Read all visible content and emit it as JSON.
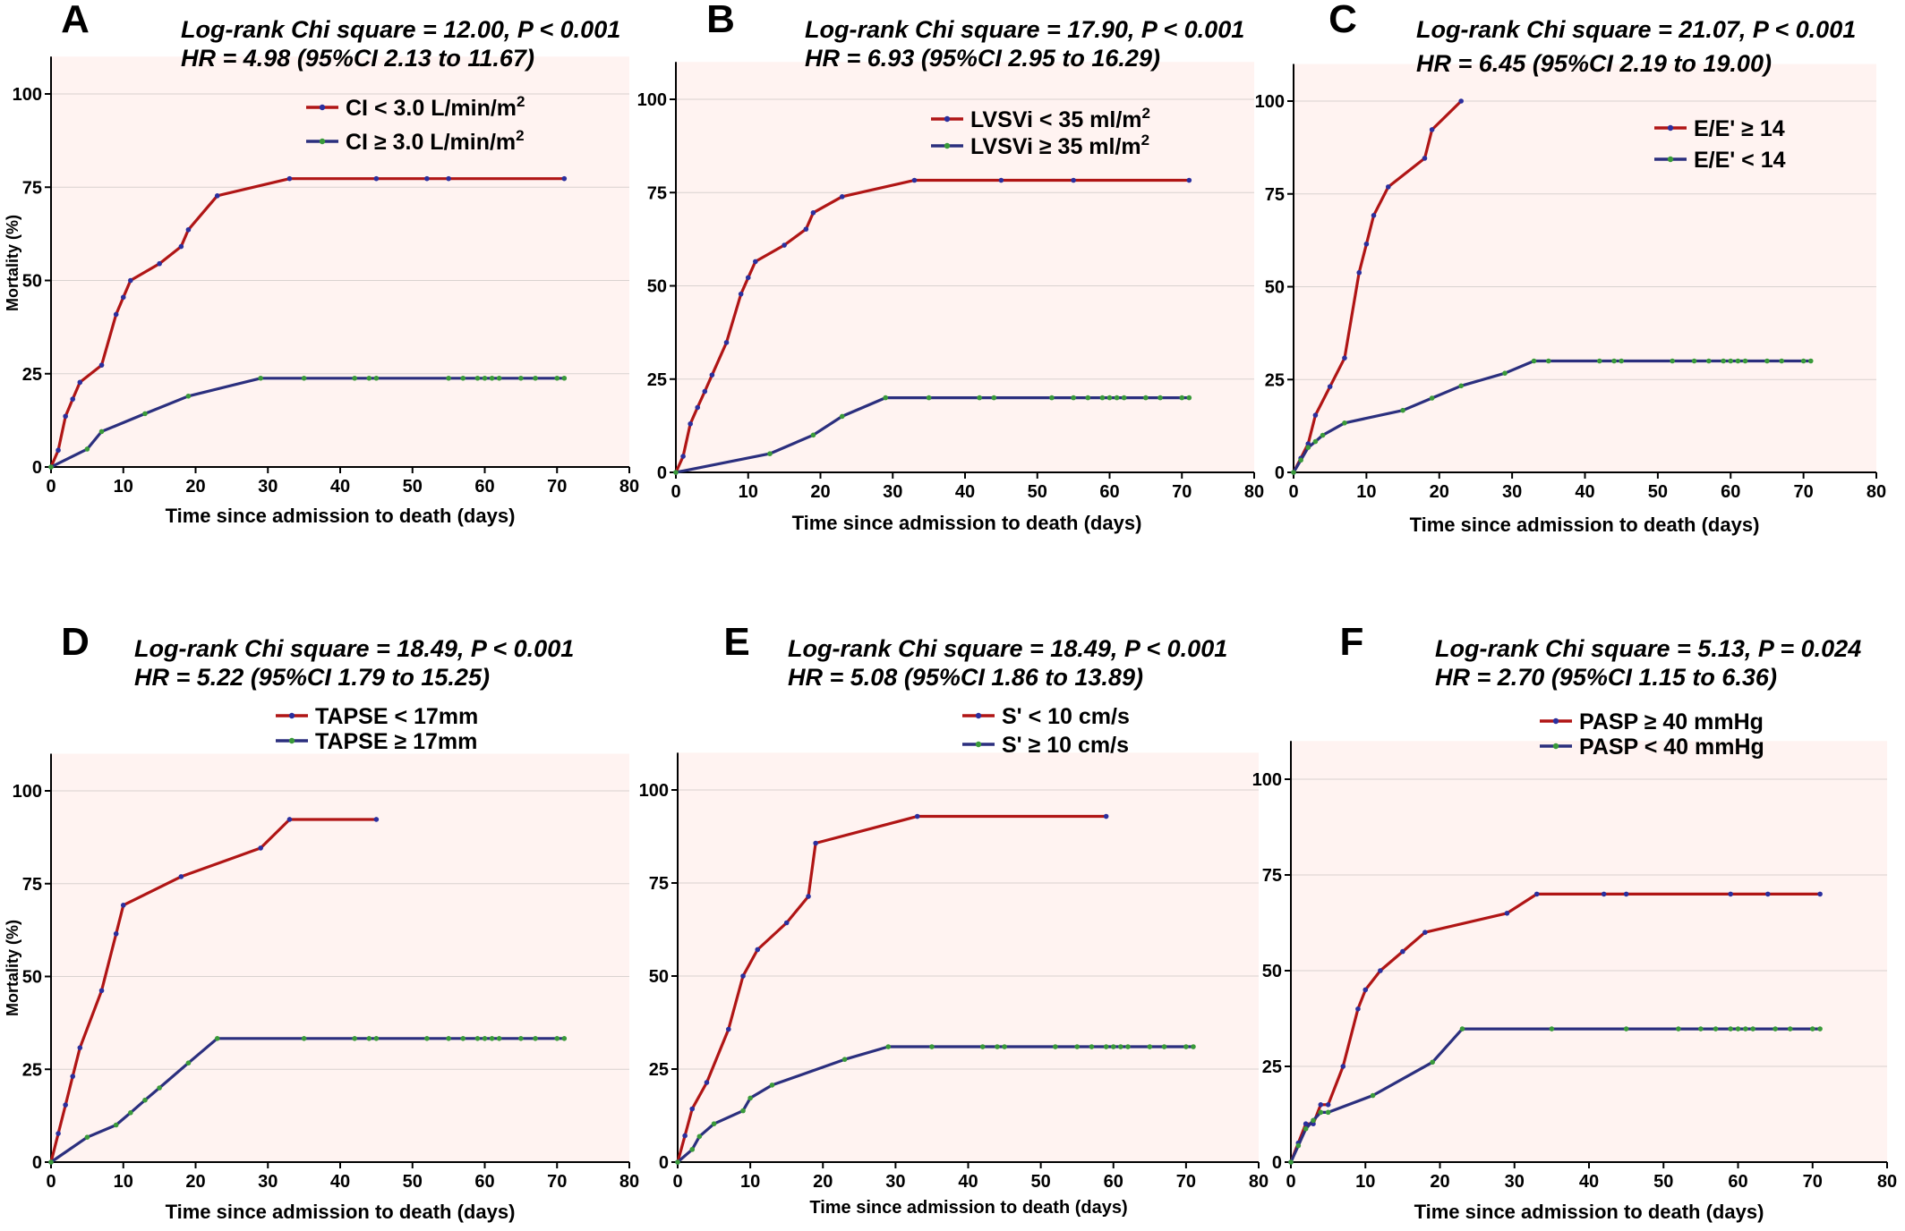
{
  "chart_data": [
    {
      "type": "line",
      "panel": "A",
      "title_lines": [
        "Log-rank Chi square  = 12.00, P < 0.001",
        "HR = 4.98 (95%CI  2.13 to 11.67)"
      ],
      "xlabel": "Time since admission to death (days)",
      "ylabel": "Mortality (%)",
      "xlim": [
        0,
        80
      ],
      "ylim": [
        0,
        110
      ],
      "xticks": [
        0,
        10,
        20,
        30,
        40,
        50,
        60,
        70,
        80
      ],
      "yticks": [
        0,
        25,
        50,
        75,
        100
      ],
      "grid": true,
      "legend_position": "top-right",
      "series": [
        {
          "name": "CI < 3.0 L/min/m",
          "name_sup": "2",
          "color": "#b01515",
          "marker": "#2b2f9e",
          "x": [
            0,
            1,
            2,
            3,
            4,
            7,
            9,
            10,
            11,
            15,
            18,
            19,
            23,
            33,
            45,
            52,
            55,
            71
          ],
          "y": [
            0,
            4.5,
            13.6,
            18.2,
            22.7,
            27.3,
            40.9,
            45.5,
            50.0,
            54.5,
            59.1,
            63.6,
            72.7,
            77.3,
            77.3,
            77.3,
            77.3,
            77.3
          ]
        },
        {
          "name": "CI ≥ 3.0 L/min/m",
          "name_sup": "2",
          "color": "#2b2f7e",
          "marker": "#3a9a3a",
          "x": [
            0,
            5,
            7,
            13,
            19,
            29,
            35,
            42,
            44,
            45,
            55,
            57,
            59,
            60,
            61,
            62,
            65,
            67,
            70,
            71
          ],
          "y": [
            0,
            4.8,
            9.5,
            14.3,
            19.0,
            23.8,
            23.8,
            23.8,
            23.8,
            23.8,
            23.8,
            23.8,
            23.8,
            23.8,
            23.8,
            23.8,
            23.8,
            23.8,
            23.8,
            23.8
          ]
        }
      ]
    },
    {
      "type": "line",
      "panel": "B",
      "title_lines": [
        "Log-rank Chi square  = 17.90, P < 0.001",
        "HR = 6.93 (95%CI  2.95 to 16.29)"
      ],
      "xlabel": "Time since admission to death (days)",
      "ylabel": "",
      "xlim": [
        0,
        80
      ],
      "ylim": [
        0,
        110
      ],
      "xticks": [
        0,
        10,
        20,
        30,
        40,
        50,
        60,
        70,
        80
      ],
      "yticks": [
        0,
        25,
        50,
        75,
        100
      ],
      "grid": true,
      "legend_position": "top-right",
      "series": [
        {
          "name": "LVSVi < 35 ml/m",
          "name_sup": "2",
          "color": "#b01515",
          "marker": "#2b2f9e",
          "x": [
            0,
            1,
            2,
            3,
            4,
            5,
            7,
            9,
            10,
            11,
            15,
            18,
            19,
            23,
            33,
            45,
            55,
            71
          ],
          "y": [
            0,
            4.3,
            13.0,
            17.4,
            21.7,
            26.1,
            34.8,
            47.8,
            52.2,
            56.5,
            60.9,
            65.2,
            69.6,
            73.9,
            78.3,
            78.3,
            78.3,
            78.3
          ]
        },
        {
          "name": "LVSVi ≥ 35 ml/m",
          "name_sup": "2",
          "color": "#2b2f7e",
          "marker": "#3a9a3a",
          "x": [
            0,
            13,
            19,
            23,
            29,
            35,
            42,
            44,
            52,
            55,
            57,
            59,
            60,
            61,
            62,
            65,
            67,
            70,
            71
          ],
          "y": [
            0,
            5,
            10,
            15,
            20,
            20,
            20,
            20,
            20,
            20,
            20,
            20,
            20,
            20,
            20,
            20,
            20,
            20,
            20
          ]
        }
      ]
    },
    {
      "type": "line",
      "panel": "C",
      "title_lines": [
        "Log-rank Chi square  = 21.07, P < 0.001",
        "HR = 6.45 (95%CI  2.19 to 19.00)"
      ],
      "xlabel": "Time since admission to death (days)",
      "ylabel": "",
      "xlim": [
        0,
        80
      ],
      "ylim": [
        0,
        110
      ],
      "xticks": [
        0,
        10,
        20,
        30,
        40,
        50,
        60,
        70,
        80
      ],
      "yticks": [
        0,
        25,
        50,
        75,
        100
      ],
      "grid": true,
      "legend_position": "top-right",
      "series": [
        {
          "name": "E/E' ≥ 14",
          "name_sup": "",
          "color": "#b01515",
          "marker": "#2b2f9e",
          "x": [
            0,
            1,
            2,
            3,
            5,
            7,
            9,
            10,
            11,
            13,
            18,
            19,
            23
          ],
          "y": [
            0,
            3.8,
            7.7,
            15.4,
            23.1,
            30.8,
            53.8,
            61.5,
            69.2,
            76.9,
            84.6,
            92.3,
            100
          ]
        },
        {
          "name": "E/E' < 14",
          "name_sup": "",
          "color": "#2b2f7e",
          "marker": "#3a9a3a",
          "x": [
            0,
            1,
            2,
            3,
            4,
            7,
            15,
            19,
            23,
            29,
            33,
            35,
            42,
            44,
            45,
            52,
            55,
            57,
            59,
            60,
            61,
            62,
            65,
            67,
            70,
            71
          ],
          "y": [
            0,
            3.3,
            6.7,
            8.3,
            10.0,
            13.3,
            16.7,
            20.0,
            23.3,
            26.7,
            30,
            30,
            30,
            30,
            30,
            30,
            30,
            30,
            30,
            30,
            30,
            30,
            30,
            30,
            30,
            30
          ]
        }
      ]
    },
    {
      "type": "line",
      "panel": "D",
      "title_lines": [
        "Log-rank Chi square  = 18.49, P < 0.001",
        "HR = 5.22 (95%CI  1.79 to 15.25)"
      ],
      "xlabel": "Time since admission to death (days)",
      "ylabel": "Mortality (%)",
      "xlim": [
        0,
        80
      ],
      "ylim": [
        0,
        110
      ],
      "xticks": [
        0,
        10,
        20,
        30,
        40,
        50,
        60,
        70,
        80
      ],
      "yticks": [
        0,
        25,
        50,
        75,
        100
      ],
      "grid": true,
      "legend_position": "top-center",
      "series": [
        {
          "name": "TAPSE < 17mm",
          "name_sup": "",
          "color": "#b01515",
          "marker": "#2b2f9e",
          "x": [
            0,
            1,
            2,
            3,
            4,
            7,
            9,
            10,
            18,
            29,
            33,
            45
          ],
          "y": [
            0,
            7.7,
            15.4,
            23.1,
            30.8,
            46.2,
            61.5,
            69.2,
            76.9,
            84.6,
            92.3,
            92.3
          ]
        },
        {
          "name": "TAPSE ≥ 17mm",
          "name_sup": "",
          "color": "#2b2f7e",
          "marker": "#3a9a3a",
          "x": [
            0,
            5,
            9,
            11,
            13,
            15,
            19,
            23,
            35,
            42,
            44,
            45,
            52,
            55,
            57,
            59,
            60,
            61,
            62,
            65,
            67,
            70,
            71
          ],
          "y": [
            0,
            6.7,
            10.0,
            13.3,
            16.7,
            20.0,
            26.7,
            33.3,
            33.3,
            33.3,
            33.3,
            33.3,
            33.3,
            33.3,
            33.3,
            33.3,
            33.3,
            33.3,
            33.3,
            33.3,
            33.3,
            33.3,
            33.3
          ]
        }
      ]
    },
    {
      "type": "line",
      "panel": "E",
      "title_lines": [
        "Log-rank Chi square  = 18.49, P < 0.001",
        "HR = 5.08 (95%CI  1.86 to 13.89)"
      ],
      "xlabel": "Time since admission to death (days)",
      "ylabel": "",
      "xlim": [
        0,
        80
      ],
      "ylim": [
        0,
        110
      ],
      "xticks": [
        0,
        10,
        20,
        30,
        40,
        50,
        60,
        70,
        80
      ],
      "yticks": [
        0,
        25,
        50,
        75,
        100
      ],
      "grid": true,
      "legend_position": "top-center",
      "series": [
        {
          "name": "S' < 10 cm/s",
          "name_sup": "",
          "color": "#b01515",
          "marker": "#2b2f9e",
          "x": [
            0,
            1,
            2,
            4,
            7,
            9,
            11,
            15,
            18,
            19,
            33,
            59
          ],
          "y": [
            0,
            7.1,
            14.3,
            21.4,
            35.7,
            50.0,
            57.1,
            64.3,
            71.4,
            85.7,
            92.9,
            92.9
          ]
        },
        {
          "name": "S' ≥ 10 cm/s",
          "name_sup": "",
          "color": "#2b2f7e",
          "marker": "#3a9a3a",
          "x": [
            0,
            2,
            3,
            5,
            9,
            10,
            13,
            23,
            29,
            35,
            42,
            44,
            45,
            52,
            55,
            57,
            59,
            60,
            61,
            62,
            65,
            67,
            70,
            71
          ],
          "y": [
            0,
            3.4,
            6.9,
            10.3,
            13.8,
            17.2,
            20.7,
            27.6,
            31.0,
            31.0,
            31.0,
            31.0,
            31.0,
            31.0,
            31.0,
            31.0,
            31.0,
            31.0,
            31.0,
            31.0,
            31.0,
            31.0,
            31.0,
            31.0
          ]
        }
      ]
    },
    {
      "type": "line",
      "panel": "F",
      "title_lines": [
        "Log-rank Chi square  = 5.13, P = 0.024",
        "HR = 2.70 (95%CI  1.15 to 6.36)"
      ],
      "xlabel": "Time since admission to death (days)",
      "ylabel": "",
      "xlim": [
        0,
        80
      ],
      "ylim": [
        0,
        110
      ],
      "xticks": [
        0,
        10,
        20,
        30,
        40,
        50,
        60,
        70,
        80
      ],
      "yticks": [
        0,
        25,
        50,
        75,
        100
      ],
      "grid": true,
      "legend_position": "top-center",
      "series": [
        {
          "name": "PASP ≥ 40 mmHg",
          "name_sup": "",
          "color": "#b01515",
          "marker": "#2b2f9e",
          "x": [
            0,
            1,
            2,
            3,
            4,
            5,
            7,
            9,
            10,
            12,
            15,
            18,
            29,
            33,
            42,
            45,
            59,
            64,
            71
          ],
          "y": [
            0,
            5,
            10,
            10,
            15,
            15,
            25,
            40,
            45,
            50,
            55,
            60,
            65,
            70,
            70,
            70,
            70,
            70,
            70
          ]
        },
        {
          "name": "PASP < 40 mmHg",
          "name_sup": "",
          "color": "#2b2f7e",
          "marker": "#3a9a3a",
          "x": [
            0,
            1,
            2,
            3,
            4,
            5,
            11,
            19,
            23,
            35,
            45,
            52,
            55,
            57,
            59,
            60,
            61,
            62,
            65,
            67,
            70,
            71
          ],
          "y": [
            0,
            4.3,
            8.7,
            10.9,
            13.0,
            13.0,
            17.4,
            26.1,
            34.8,
            34.8,
            34.8,
            34.8,
            34.8,
            34.8,
            34.8,
            34.8,
            34.8,
            34.8,
            34.8,
            34.8,
            34.8,
            34.8
          ]
        }
      ]
    }
  ]
}
